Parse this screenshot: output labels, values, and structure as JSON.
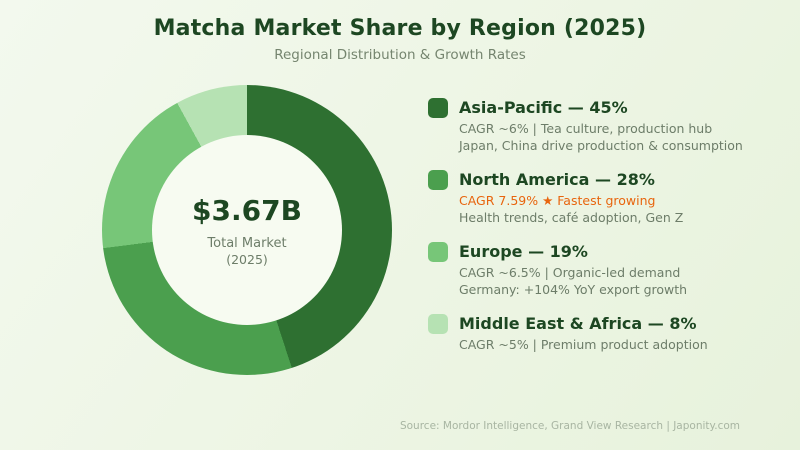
{
  "header": {
    "title": "Matcha Market Share by Region (2025)",
    "subtitle": "Regional Distribution & Growth Rates"
  },
  "chart_data": {
    "type": "pie",
    "subtype": "donut",
    "title": "Matcha Market Share by Region (2025)",
    "subtitle": "Regional Distribution & Growth Rates",
    "categories": [
      "Asia-Pacific",
      "North America",
      "Europe",
      "Middle East & Africa"
    ],
    "values": [
      45,
      28,
      19,
      8
    ],
    "unit": "%",
    "colors": [
      "#2e7031",
      "#4b9f4e",
      "#77c678",
      "#b6e2b3"
    ],
    "start_angle_deg": 0,
    "direction": "clockwise",
    "legend_position": "right",
    "center_label": {
      "value": "$3.67B",
      "line1": "Total Market",
      "line2": "(2025)"
    },
    "segments": [
      {
        "label": "Asia-Pacific",
        "value": 45,
        "color": "#2e7031",
        "title": "Asia-Pacific — 45%",
        "lines": [
          {
            "text": "CAGR ~6% | Tea culture, production hub",
            "highlight": false
          },
          {
            "text": "Japan, China drive production & consumption",
            "highlight": false
          }
        ]
      },
      {
        "label": "North America",
        "value": 28,
        "color": "#4b9f4e",
        "title": "North America — 28%",
        "lines": [
          {
            "text": "CAGR 7.59% ★ Fastest growing",
            "highlight": true
          },
          {
            "text": "Health trends, café adoption, Gen Z",
            "highlight": false
          }
        ]
      },
      {
        "label": "Europe",
        "value": 19,
        "color": "#77c678",
        "title": "Europe — 19%",
        "lines": [
          {
            "text": "CAGR ~6.5% | Organic-led demand",
            "highlight": false
          },
          {
            "text": "Germany: +104% YoY export growth",
            "highlight": false
          }
        ]
      },
      {
        "label": "Middle East & Africa",
        "value": 8,
        "color": "#b6e2b3",
        "title": "Middle East & Africa — 8%",
        "lines": [
          {
            "text": "CAGR ~5% | Premium product adoption",
            "highlight": false
          }
        ]
      }
    ]
  },
  "footer": {
    "source": "Source: Mordor Intelligence, Grand View Research | Japonity.com"
  },
  "colors": {
    "accent_dark": "#1d4722",
    "text_muted": "#6d7d69",
    "subtitle": "#75856f",
    "highlight": "#e8650e",
    "footer": "#a8b5a2",
    "hole": "#f7fbf1",
    "bg_start": "#f3f9ee",
    "bg_end": "#e7f2dc"
  }
}
